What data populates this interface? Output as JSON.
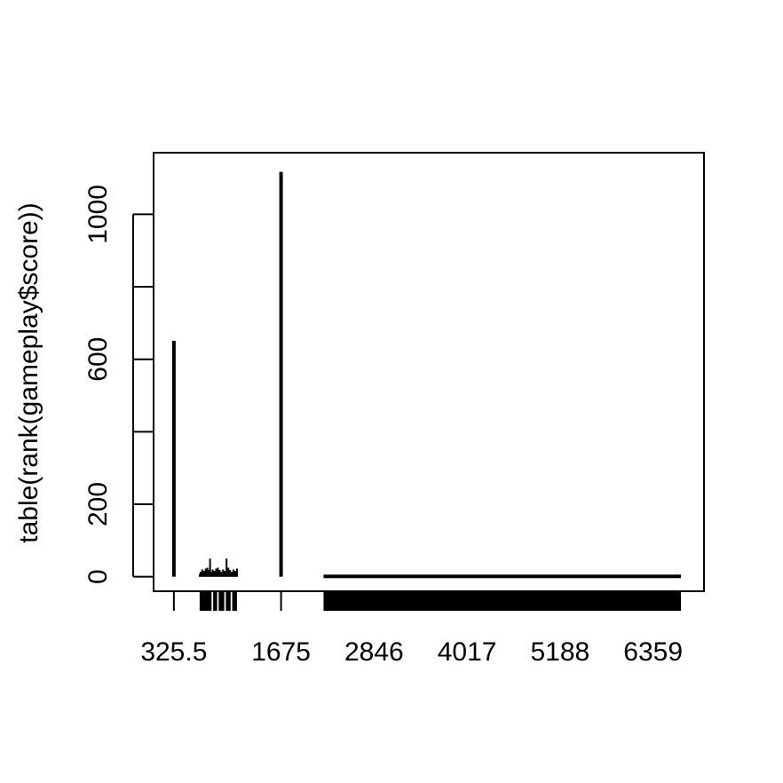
{
  "chart_data": {
    "type": "bar",
    "title": "",
    "xlabel": "",
    "ylabel": "table(rank(gameplay$score))",
    "xlim": [
      70,
      7000
    ],
    "ylim": [
      -40,
      1170
    ],
    "x_ticks": [
      325.5,
      1675,
      2846,
      4017,
      5188,
      6359
    ],
    "x_tick_labels": [
      "325.5",
      "1675",
      "2846",
      "4017",
      "5188",
      "6359"
    ],
    "y_ticks": [
      0,
      200,
      400,
      600,
      800,
      1000
    ],
    "y_tick_labels": [
      "0",
      "200",
      "",
      "600",
      "",
      "1000"
    ],
    "major_bars": [
      {
        "x": 325.5,
        "count": 651
      },
      {
        "x": 1675,
        "count": 1117
      }
    ],
    "small_bar_cluster": {
      "x_from": 650,
      "x_to": 1120,
      "typical_count": 25,
      "max_count": 50
    },
    "flat_segment": {
      "x_from": 2210,
      "x_to": 6710,
      "count": 1
    },
    "rug_ranges": [
      {
        "from": 650,
        "to": 800
      },
      {
        "from": 820,
        "to": 870
      },
      {
        "from": 890,
        "to": 960
      },
      {
        "from": 980,
        "to": 1040
      },
      {
        "from": 1060,
        "to": 1120
      },
      {
        "from": 2210,
        "to": 6710
      }
    ],
    "grid": false,
    "legend": "none"
  }
}
